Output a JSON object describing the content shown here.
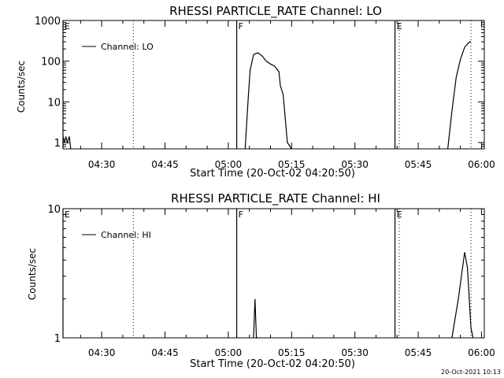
{
  "footer_timestamp": "20-Oct-2021 10:13",
  "chart_data": [
    {
      "type": "line",
      "title": "RHESSI PARTICLE_RATE Channel: LO",
      "xlabel": "Start Time (20-Oct-02 04:20:50)",
      "ylabel": "Counts/sec",
      "y_scale": "log",
      "xlim": [
        "04:20:50",
        "06:00:40"
      ],
      "ylim": [
        0.7,
        1000
      ],
      "x_ticks": [
        "04:30",
        "04:45",
        "05:00",
        "05:15",
        "05:30",
        "05:45",
        "06:00"
      ],
      "y_ticks": [
        "1",
        "10",
        "100",
        "1000"
      ],
      "legend": {
        "position": "top-left",
        "entries": [
          "Channel: LO"
        ]
      },
      "markers": [
        {
          "label": "E",
          "time": "04:20:50",
          "style": "solid"
        },
        {
          "label": "F",
          "time": "05:02:00",
          "style": "solid"
        },
        {
          "label": "E",
          "time": "05:39:30",
          "style": "solid"
        }
      ],
      "dotted_lines": [
        "04:37:30",
        "05:40:30",
        "05:57:30"
      ],
      "series": [
        {
          "name": "Channel: LO",
          "segments": [
            {
              "x": [
                "04:20:50",
                "04:21:10",
                "04:21:30",
                "04:21:50",
                "04:22:20",
                "04:22:40"
              ],
              "y": [
                1.4,
                1.0,
                1.4,
                1.0,
                1.4,
                0.7
              ]
            },
            {
              "x": [
                "05:04:00",
                "05:04:40",
                "05:05:10",
                "05:06:00",
                "05:07:00",
                "05:08:00",
                "05:09:00",
                "05:10:00",
                "05:11:00",
                "05:12:00",
                "05:12:20",
                "05:13:00",
                "05:14:00",
                "05:15:00"
              ],
              "y": [
                0.7,
                10,
                60,
                145,
                160,
                135,
                100,
                85,
                75,
                55,
                25,
                15,
                1,
                0.7
              ]
            },
            {
              "x": [
                "05:52:00",
                "05:53:00",
                "05:54:00",
                "05:55:00",
                "05:56:00",
                "05:57:00",
                "05:57:30"
              ],
              "y": [
                0.7,
                6,
                40,
                110,
                220,
                290,
                300
              ]
            }
          ]
        }
      ]
    },
    {
      "type": "line",
      "title": "RHESSI PARTICLE_RATE Channel: HI",
      "xlabel": "Start Time (20-Oct-02 04:20:50)",
      "ylabel": "Counts/sec",
      "y_scale": "log",
      "xlim": [
        "04:20:50",
        "06:00:40"
      ],
      "ylim": [
        1,
        10
      ],
      "x_ticks": [
        "04:30",
        "04:45",
        "05:00",
        "05:15",
        "05:30",
        "05:45",
        "06:00"
      ],
      "y_ticks": [
        "1",
        "10"
      ],
      "legend": {
        "position": "top-left",
        "entries": [
          "Channel: HI"
        ]
      },
      "markers": [
        {
          "label": "E",
          "time": "04:20:50",
          "style": "solid"
        },
        {
          "label": "F",
          "time": "05:02:00",
          "style": "solid"
        },
        {
          "label": "E",
          "time": "05:39:30",
          "style": "solid"
        }
      ],
      "dotted_lines": [
        "04:37:30",
        "05:40:30",
        "05:57:30"
      ],
      "series": [
        {
          "name": "Channel: HI",
          "segments": [
            {
              "x": [
                "05:06:00",
                "05:06:20",
                "05:06:40",
                "05:07:00"
              ],
              "y": [
                1,
                2.0,
                1,
                1
              ]
            },
            {
              "x": [
                "05:53:00",
                "05:54:30",
                "05:56:00",
                "05:56:40",
                "05:57:30",
                "05:58:00"
              ],
              "y": [
                1,
                2.0,
                4.6,
                3.5,
                1.2,
                1
              ]
            }
          ]
        }
      ]
    }
  ]
}
